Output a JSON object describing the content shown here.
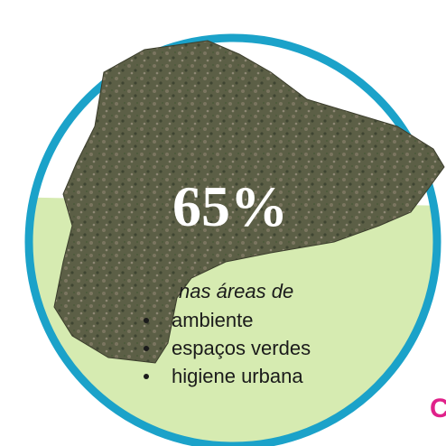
{
  "headline": "65%",
  "intro": "nas áreas de",
  "items": [
    "ambiente",
    "espaços verdes",
    "higiene urbana"
  ],
  "fragment": "C"
}
